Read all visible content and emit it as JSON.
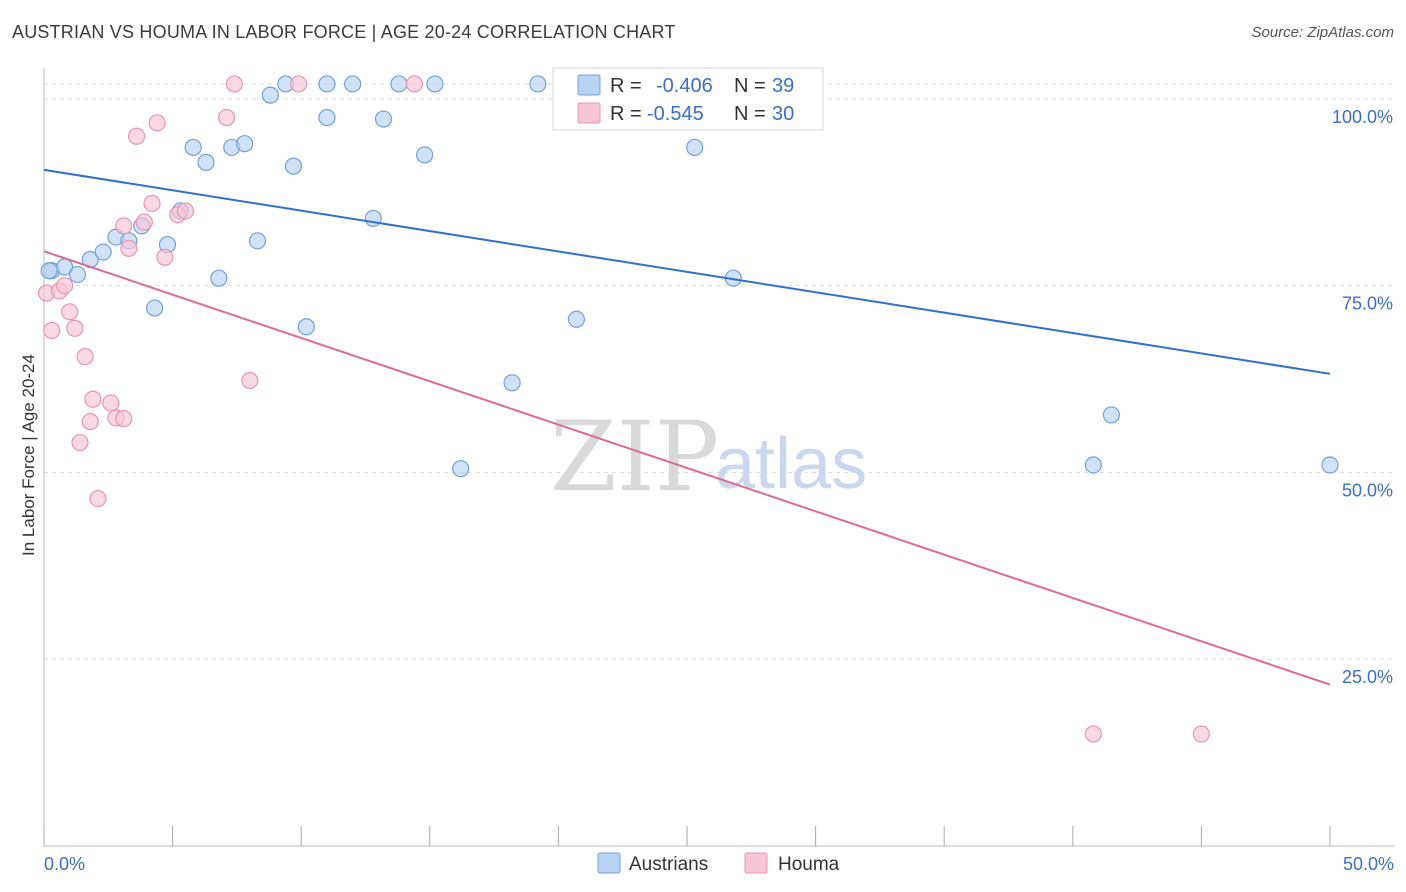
{
  "title": "AUSTRIAN VS HOUMA IN LABOR FORCE | AGE 20-24 CORRELATION CHART",
  "source": "Source: ZipAtlas.com",
  "watermark": {
    "zip": "ZIP",
    "atlas": "atlas"
  },
  "colors": {
    "blue_fill": "#b9d3f3",
    "blue_stroke": "#6fa0de",
    "blue_line": "#2f6fcf",
    "pink_fill": "#f8c5d6",
    "pink_stroke": "#ec93b1",
    "pink_line": "#e06a96",
    "axis_text": "#3a6fc4",
    "grid": "#dddddd"
  },
  "legend": {
    "rows": [
      {
        "r_label": "R = ",
        "r_value": "-0.406",
        "n_label": "N = ",
        "n_value": "39"
      },
      {
        "r_label": "R = ",
        "r_value": "-0.545",
        "n_label": "N = ",
        "n_value": "30"
      }
    ]
  },
  "chart_data": {
    "type": "scatter",
    "title": "AUSTRIAN VS HOUMA IN LABOR FORCE | AGE 20-24 CORRELATION CHART",
    "xlabel": "",
    "ylabel": "In Labor Force | Age 20-24",
    "xlim": [
      0,
      50
    ],
    "ylim": [
      0,
      104
    ],
    "x_tick_labels": [
      "0.0%",
      "50.0%"
    ],
    "y_ticks": [
      25,
      50,
      75,
      100
    ],
    "y_tick_labels": [
      "25.0%",
      "50.0%",
      "75.0%",
      "100.0%"
    ],
    "grid": true,
    "series": [
      {
        "name": "Austrians",
        "r": -0.406,
        "n": 39,
        "trend": {
          "x": [
            0,
            50
          ],
          "y": [
            90.5,
            63.2
          ]
        },
        "points": [
          {
            "x": 0.3,
            "y": 77.0
          },
          {
            "x": 0.8,
            "y": 77.5
          },
          {
            "x": 1.3,
            "y": 76.5
          },
          {
            "x": 1.8,
            "y": 78.5
          },
          {
            "x": 2.3,
            "y": 79.5
          },
          {
            "x": 2.8,
            "y": 81.5
          },
          {
            "x": 3.3,
            "y": 81.0
          },
          {
            "x": 3.8,
            "y": 83.0
          },
          {
            "x": 4.3,
            "y": 72.0
          },
          {
            "x": 4.8,
            "y": 80.5
          },
          {
            "x": 5.3,
            "y": 85.0
          },
          {
            "x": 5.8,
            "y": 93.5
          },
          {
            "x": 6.3,
            "y": 91.5
          },
          {
            "x": 6.8,
            "y": 76.0
          },
          {
            "x": 7.3,
            "y": 93.5
          },
          {
            "x": 7.8,
            "y": 94.0
          },
          {
            "x": 8.3,
            "y": 81.0
          },
          {
            "x": 8.8,
            "y": 100.5
          },
          {
            "x": 9.4,
            "y": 102.0
          },
          {
            "x": 9.7,
            "y": 91.0
          },
          {
            "x": 10.2,
            "y": 69.5
          },
          {
            "x": 11.0,
            "y": 102.0
          },
          {
            "x": 11.0,
            "y": 97.5
          },
          {
            "x": 12.0,
            "y": 102.0
          },
          {
            "x": 12.8,
            "y": 84.0
          },
          {
            "x": 13.2,
            "y": 97.3
          },
          {
            "x": 13.8,
            "y": 102.0
          },
          {
            "x": 14.8,
            "y": 92.5
          },
          {
            "x": 15.2,
            "y": 102.0
          },
          {
            "x": 16.2,
            "y": 50.5
          },
          {
            "x": 18.2,
            "y": 62.0
          },
          {
            "x": 19.2,
            "y": 102.0
          },
          {
            "x": 20.7,
            "y": 70.5
          },
          {
            "x": 25.3,
            "y": 93.5
          },
          {
            "x": 26.8,
            "y": 76.0
          },
          {
            "x": 40.8,
            "y": 51.0
          },
          {
            "x": 41.5,
            "y": 57.7
          },
          {
            "x": 50.0,
            "y": 51.0
          },
          {
            "x": 0.2,
            "y": 77.0
          }
        ]
      },
      {
        "name": "Houma",
        "r": -0.545,
        "n": 30,
        "trend": {
          "x": [
            0,
            50
          ],
          "y": [
            79.6,
            21.6
          ]
        },
        "points": [
          {
            "x": 0.1,
            "y": 74.0
          },
          {
            "x": 0.3,
            "y": 69.0
          },
          {
            "x": 0.6,
            "y": 74.3
          },
          {
            "x": 0.8,
            "y": 75.0
          },
          {
            "x": 1.0,
            "y": 71.5
          },
          {
            "x": 1.2,
            "y": 69.3
          },
          {
            "x": 1.4,
            "y": 54.0
          },
          {
            "x": 1.6,
            "y": 65.5
          },
          {
            "x": 1.8,
            "y": 56.8
          },
          {
            "x": 1.9,
            "y": 59.8
          },
          {
            "x": 2.1,
            "y": 46.5
          },
          {
            "x": 2.6,
            "y": 59.3
          },
          {
            "x": 2.8,
            "y": 57.3
          },
          {
            "x": 3.1,
            "y": 57.2
          },
          {
            "x": 3.1,
            "y": 83.0
          },
          {
            "x": 3.3,
            "y": 80.0
          },
          {
            "x": 3.6,
            "y": 95.0
          },
          {
            "x": 3.9,
            "y": 83.5
          },
          {
            "x": 4.2,
            "y": 86.0
          },
          {
            "x": 4.4,
            "y": 96.8
          },
          {
            "x": 4.7,
            "y": 78.8
          },
          {
            "x": 5.2,
            "y": 84.5
          },
          {
            "x": 5.5,
            "y": 85.0
          },
          {
            "x": 7.1,
            "y": 97.5
          },
          {
            "x": 7.4,
            "y": 102.0
          },
          {
            "x": 8.0,
            "y": 62.3
          },
          {
            "x": 9.9,
            "y": 102.0
          },
          {
            "x": 14.4,
            "y": 102.0
          },
          {
            "x": 40.8,
            "y": 15.0
          },
          {
            "x": 45.0,
            "y": 15.0
          }
        ]
      }
    ]
  }
}
